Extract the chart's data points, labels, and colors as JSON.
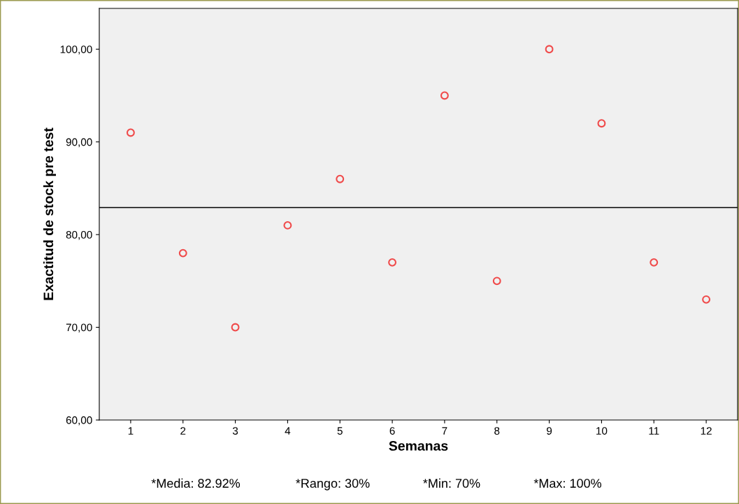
{
  "chart_data": {
    "type": "scatter",
    "xlabel": "Semanas",
    "ylabel": "Exactitud de stock pre test",
    "x": [
      1,
      2,
      3,
      4,
      5,
      6,
      7,
      8,
      9,
      10,
      11,
      12
    ],
    "series": [
      {
        "color": "#f04a4a",
        "values": [
          91,
          78,
          70,
          81,
          86,
          77,
          95,
          75,
          100,
          92,
          77,
          73
        ]
      }
    ],
    "marker": "circle",
    "xlim": [
      0.4,
      12.6
    ],
    "xticks": [
      1,
      2,
      3,
      4,
      5,
      6,
      7,
      8,
      9,
      10,
      11,
      12
    ],
    "ylim": [
      60,
      104.4
    ],
    "yticks": [
      {
        "value": 60,
        "label": "60,00"
      },
      {
        "value": 70,
        "label": "70,00"
      },
      {
        "value": 80,
        "label": "80,00"
      },
      {
        "value": 90,
        "label": "90,00"
      },
      {
        "value": 100,
        "label": "100,00"
      }
    ],
    "ref_lines": [
      {
        "axis": "y",
        "value": 82.92,
        "color": "#000000"
      }
    ],
    "grid": false,
    "legend": false,
    "annotations": [
      "*Media: 82.92%",
      "*Rango: 30%",
      "*Min: 70%",
      "*Max: 100%"
    ]
  }
}
